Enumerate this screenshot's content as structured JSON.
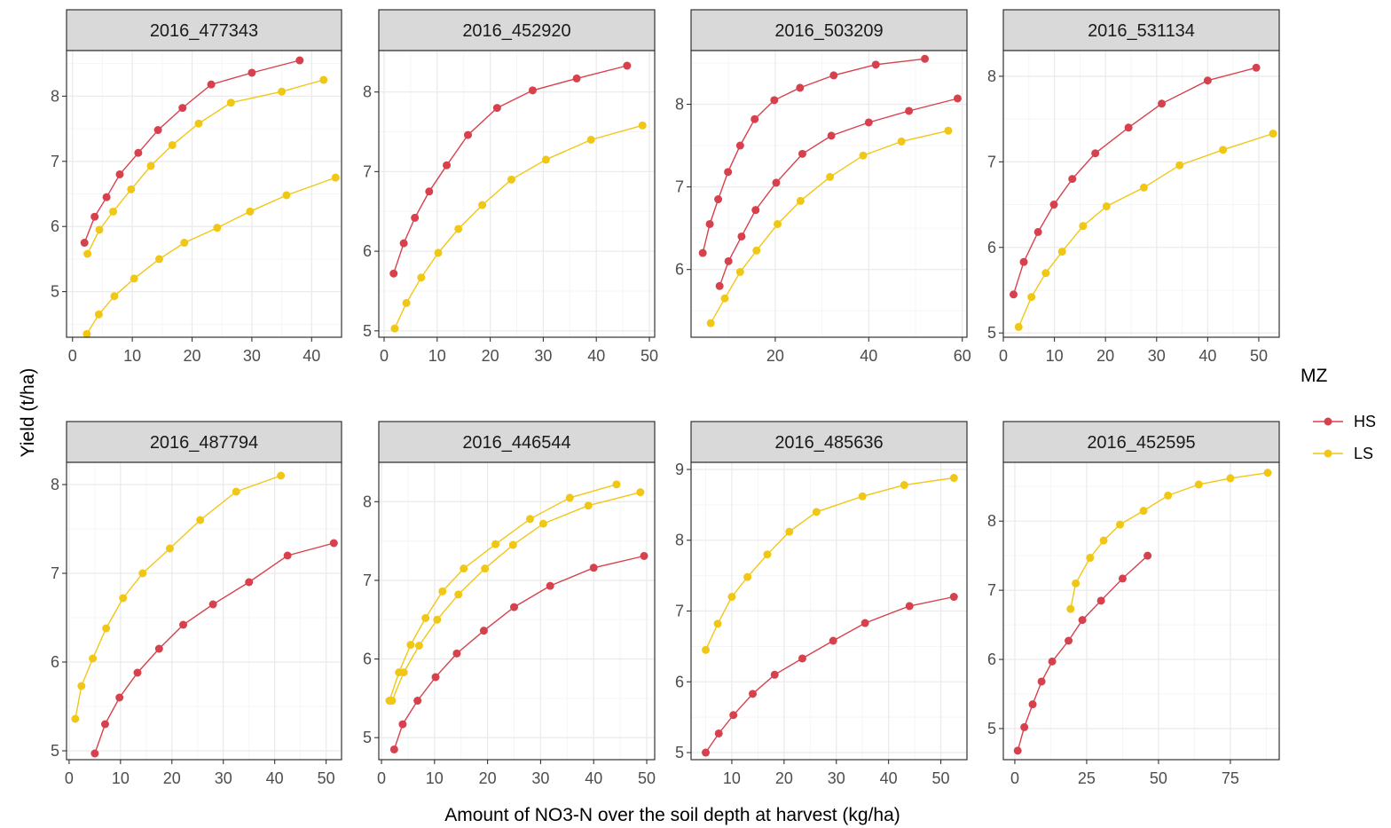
{
  "colors": {
    "HS": "#D7414E",
    "LS": "#F1C716",
    "strip_bg": "#D9D9D9",
    "grid_major": "#EBEBEB",
    "grid_minor": "#F5F5F5",
    "panel_border": "#333333"
  },
  "axes": {
    "xlabel": "Amount of NO3-N over the soil depth at harvest (kg/ha)",
    "ylabel": "Yield (t/ha)"
  },
  "legend": {
    "title": "MZ",
    "entries": [
      {
        "key": "HS",
        "label": "HS"
      },
      {
        "key": "LS",
        "label": "LS"
      }
    ]
  },
  "chart_data": [
    {
      "type": "line",
      "title": "2016_477343",
      "grid": true,
      "xlim": [
        -1,
        45
      ],
      "ylim": [
        4.3,
        8.7
      ],
      "xticks": [
        0,
        10,
        20,
        30,
        40
      ],
      "yticks": [
        5,
        6,
        7,
        8
      ],
      "series": [
        {
          "name": "HS",
          "x": [
            2,
            3.7,
            5.7,
            7.9,
            11,
            14.3,
            18.4,
            23.2,
            30,
            38
          ],
          "y": [
            5.75,
            6.15,
            6.45,
            6.8,
            7.13,
            7.48,
            7.82,
            8.18,
            8.36,
            8.55
          ]
        },
        {
          "name": "LS",
          "x": [
            2.5,
            4.5,
            6.8,
            9.8,
            13.1,
            16.7,
            21.1,
            26.5,
            35,
            42
          ],
          "y": [
            5.58,
            5.95,
            6.23,
            6.57,
            6.93,
            7.25,
            7.58,
            7.9,
            8.07,
            8.25
          ]
        },
        {
          "name": "LS",
          "x": [
            2.4,
            4.4,
            7,
            10.3,
            14.5,
            18.7,
            24.2,
            29.7,
            35.8,
            44
          ],
          "y": [
            4.35,
            4.65,
            4.93,
            5.2,
            5.5,
            5.75,
            5.98,
            6.23,
            6.48,
            6.75
          ]
        }
      ]
    },
    {
      "type": "line",
      "title": "2016_452920",
      "grid": true,
      "xlim": [
        -1,
        51
      ],
      "ylim": [
        4.92,
        8.52
      ],
      "xticks": [
        0,
        10,
        20,
        30,
        40,
        50
      ],
      "yticks": [
        5,
        6,
        7,
        8
      ],
      "series": [
        {
          "name": "HS",
          "x": [
            1.8,
            3.7,
            5.8,
            8.5,
            11.8,
            15.8,
            21.3,
            28,
            36.3,
            45.8
          ],
          "y": [
            5.72,
            6.1,
            6.42,
            6.75,
            7.08,
            7.46,
            7.8,
            8.02,
            8.17,
            8.33
          ]
        },
        {
          "name": "LS",
          "x": [
            2,
            4.2,
            7,
            10.2,
            14,
            18.5,
            24,
            30.5,
            39,
            48.7
          ],
          "y": [
            5.03,
            5.35,
            5.67,
            5.98,
            6.28,
            6.58,
            6.9,
            7.15,
            7.4,
            7.58
          ]
        }
      ]
    },
    {
      "type": "line",
      "title": "2016_503209",
      "grid": true,
      "xlim": [
        2,
        61
      ],
      "ylim": [
        5.18,
        8.65
      ],
      "xticks": [
        20,
        40,
        60
      ],
      "yticks": [
        6,
        7,
        8
      ],
      "series": [
        {
          "name": "HS",
          "x": [
            4.5,
            6,
            7.8,
            9.9,
            12.5,
            15.6,
            19.8,
            25.3,
            32.5,
            41.5,
            52
          ],
          "y": [
            6.2,
            6.55,
            6.85,
            7.18,
            7.5,
            7.82,
            8.05,
            8.2,
            8.35,
            8.48,
            8.55
          ]
        },
        {
          "name": "HS",
          "x": [
            8.1,
            10,
            12.8,
            15.8,
            20.2,
            25.8,
            32,
            40,
            48.6,
            59
          ],
          "y": [
            5.8,
            6.1,
            6.4,
            6.72,
            7.05,
            7.4,
            7.62,
            7.78,
            7.92,
            8.07
          ]
        },
        {
          "name": "LS",
          "x": [
            6.2,
            9.2,
            12.5,
            16,
            20.5,
            25.4,
            31.7,
            38.8,
            47,
            57
          ],
          "y": [
            5.35,
            5.65,
            5.97,
            6.23,
            6.55,
            6.83,
            7.12,
            7.38,
            7.55,
            7.68
          ]
        }
      ]
    },
    {
      "type": "line",
      "title": "2016_531134",
      "grid": true,
      "xlim": [
        0,
        54
      ],
      "ylim": [
        4.95,
        8.3
      ],
      "xticks": [
        0,
        10,
        20,
        30,
        40,
        50
      ],
      "yticks": [
        5,
        6,
        7,
        8
      ],
      "series": [
        {
          "name": "HS",
          "x": [
            2,
            4,
            6.8,
            9.9,
            13.5,
            18,
            24.5,
            31,
            40,
            49.5
          ],
          "y": [
            5.45,
            5.83,
            6.18,
            6.5,
            6.8,
            7.1,
            7.4,
            7.68,
            7.95,
            8.1
          ]
        },
        {
          "name": "LS",
          "x": [
            3,
            5.5,
            8.3,
            11.5,
            15.6,
            20.2,
            27.5,
            34.5,
            43,
            52.8
          ],
          "y": [
            5.07,
            5.42,
            5.7,
            5.95,
            6.25,
            6.48,
            6.7,
            6.96,
            7.14,
            7.33
          ]
        }
      ]
    },
    {
      "type": "line",
      "title": "2016_487794",
      "grid": true,
      "xlim": [
        -0.5,
        53
      ],
      "ylim": [
        4.9,
        8.25
      ],
      "xticks": [
        0,
        10,
        20,
        30,
        40,
        50
      ],
      "yticks": [
        5,
        6,
        7,
        8
      ],
      "series": [
        {
          "name": "HS",
          "x": [
            5,
            7,
            9.8,
            13.3,
            17.5,
            22.2,
            28,
            35,
            42.5,
            51.5
          ],
          "y": [
            4.97,
            5.3,
            5.6,
            5.88,
            6.15,
            6.42,
            6.65,
            6.9,
            7.2,
            7.34
          ]
        },
        {
          "name": "LS",
          "x": [
            1.2,
            2.4,
            4.6,
            7.2,
            10.5,
            14.3,
            19.6,
            25.5,
            32.5,
            41.2
          ],
          "y": [
            5.36,
            5.73,
            6.04,
            6.38,
            6.72,
            7.0,
            7.28,
            7.6,
            7.92,
            8.1
          ]
        }
      ]
    },
    {
      "type": "line",
      "title": "2016_446544",
      "grid": true,
      "xlim": [
        -0.5,
        51.5
      ],
      "ylim": [
        4.72,
        8.5
      ],
      "xticks": [
        0,
        10,
        20,
        30,
        40,
        50
      ],
      "yticks": [
        5,
        6,
        7,
        8
      ],
      "series": [
        {
          "name": "HS",
          "x": [
            2.4,
            4,
            6.8,
            10.2,
            14.2,
            19.3,
            25,
            31.8,
            40,
            49.5
          ],
          "y": [
            4.85,
            5.17,
            5.47,
            5.77,
            6.07,
            6.36,
            6.66,
            6.93,
            7.16,
            7.31
          ]
        },
        {
          "name": "LS",
          "x": [
            1.5,
            3.3,
            5.5,
            8.3,
            11.5,
            15.5,
            21.5,
            28,
            35.5,
            44.3
          ],
          "y": [
            5.47,
            5.83,
            6.18,
            6.52,
            6.86,
            7.15,
            7.46,
            7.78,
            8.05,
            8.22
          ]
        },
        {
          "name": "LS",
          "x": [
            2,
            4.2,
            7.1,
            10.5,
            14.5,
            19.5,
            24.8,
            30.5,
            39,
            48.8
          ],
          "y": [
            5.47,
            5.83,
            6.17,
            6.5,
            6.82,
            7.15,
            7.45,
            7.72,
            7.95,
            8.12
          ]
        }
      ]
    },
    {
      "type": "line",
      "title": "2016_485636",
      "grid": true,
      "xlim": [
        2.2,
        55
      ],
      "ylim": [
        4.9,
        9.1
      ],
      "xticks": [
        10,
        20,
        30,
        40,
        50
      ],
      "yticks": [
        5,
        6,
        7,
        8,
        9
      ],
      "series": [
        {
          "name": "HS",
          "x": [
            5,
            7.5,
            10.3,
            14,
            18.2,
            23.5,
            29.4,
            35.5,
            44,
            52.5
          ],
          "y": [
            5.0,
            5.27,
            5.53,
            5.83,
            6.1,
            6.33,
            6.58,
            6.83,
            7.07,
            7.2
          ]
        },
        {
          "name": "LS",
          "x": [
            5,
            7.3,
            10,
            13,
            16.8,
            21,
            26.2,
            35,
            43,
            52.5
          ],
          "y": [
            6.45,
            6.82,
            7.2,
            7.48,
            7.8,
            8.12,
            8.4,
            8.62,
            8.78,
            8.88
          ]
        }
      ]
    },
    {
      "type": "line",
      "title": "2016_452595",
      "grid": true,
      "xlim": [
        -4,
        92
      ],
      "ylim": [
        4.55,
        8.85
      ],
      "xticks": [
        0,
        25,
        50,
        75
      ],
      "yticks": [
        5,
        6,
        7,
        8
      ],
      "series": [
        {
          "name": "HS",
          "x": [
            1,
            3.3,
            6.2,
            9.3,
            13,
            18.7,
            23.5,
            30,
            37.5,
            46.2
          ],
          "y": [
            4.68,
            5.02,
            5.35,
            5.68,
            5.97,
            6.27,
            6.57,
            6.85,
            7.17,
            7.5
          ]
        },
        {
          "name": "LS",
          "x": [
            19.4,
            21.2,
            26.2,
            30.9,
            36.6,
            44.8,
            53.3,
            64,
            75,
            88
          ],
          "y": [
            6.73,
            7.1,
            7.47,
            7.72,
            7.95,
            8.15,
            8.37,
            8.53,
            8.62,
            8.7
          ]
        }
      ]
    }
  ]
}
